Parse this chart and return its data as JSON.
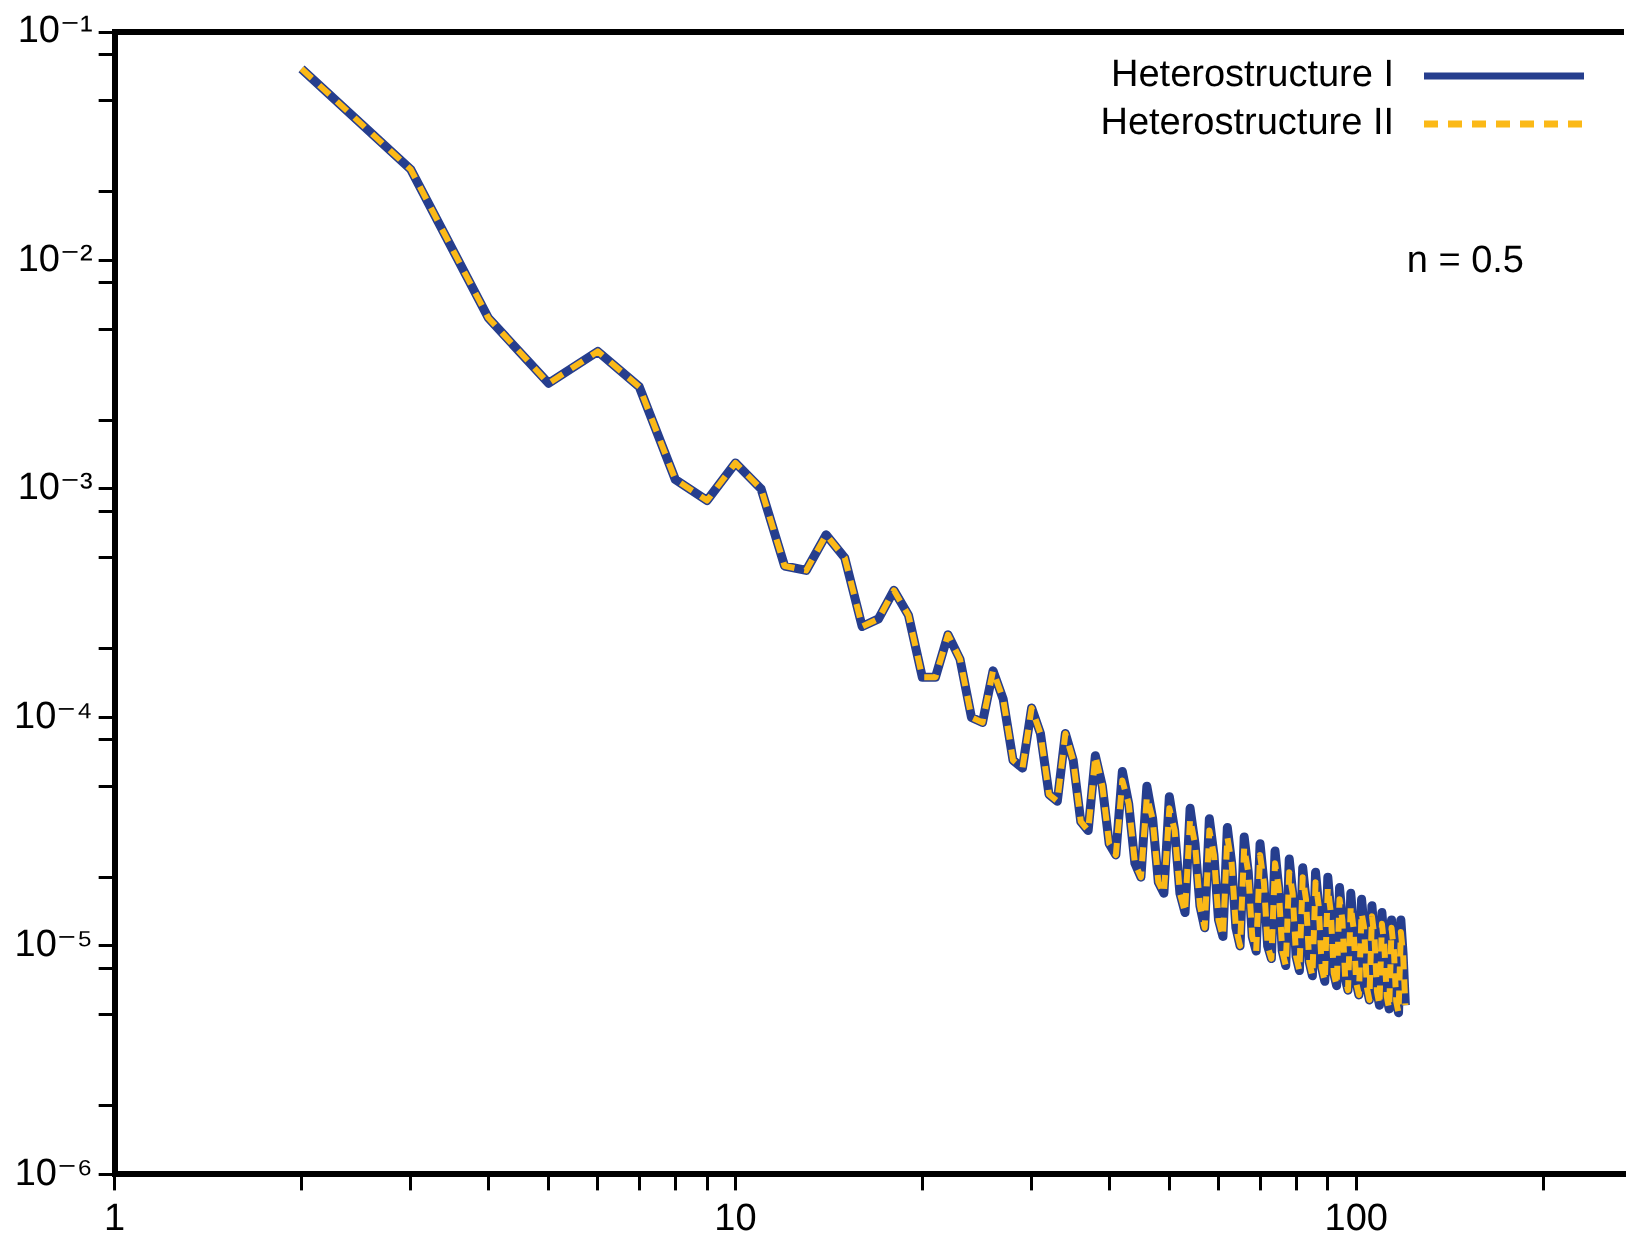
{
  "chart_data": {
    "type": "line",
    "log": "xy",
    "grid": false,
    "legend": "top right",
    "marker": "none",
    "xlim": [
      1,
      270
    ],
    "ylim": [
      1e-06,
      0.1
    ],
    "xticks": [
      1,
      {
        "value": 2,
        "label": null
      },
      {
        "value": 3,
        "label": null
      },
      {
        "value": 4,
        "label": null
      },
      {
        "value": 5,
        "label": null
      },
      {
        "value": 6,
        "label": null
      },
      {
        "value": 7,
        "label": null
      },
      {
        "value": 8,
        "label": null
      },
      {
        "value": 9,
        "label": null
      },
      10,
      {
        "value": 20,
        "label": null
      },
      {
        "value": 30,
        "label": null
      },
      {
        "value": 40,
        "label": null
      },
      {
        "value": 50,
        "label": null
      },
      {
        "value": 60,
        "label": null
      },
      {
        "value": 70,
        "label": null
      },
      {
        "value": 80,
        "label": null
      },
      {
        "value": 90,
        "label": null
      },
      100,
      {
        "value": 200,
        "label": null
      }
    ],
    "yticks": [
      {
        "value": 1e-06,
        "label": "10⁻⁶"
      },
      {
        "value": 2e-06,
        "label": null
      },
      {
        "value": 5e-06,
        "label": null
      },
      {
        "value": 8e-06,
        "label": null
      },
      {
        "value": 1e-05,
        "label": "10⁻⁵"
      },
      {
        "value": 2e-05,
        "label": null
      },
      {
        "value": 5e-05,
        "label": null
      },
      {
        "value": 8e-05,
        "label": null
      },
      {
        "value": 0.0001,
        "label": "10⁻⁴"
      },
      {
        "value": 0.0002,
        "label": null
      },
      {
        "value": 0.0005,
        "label": null
      },
      {
        "value": 0.0008,
        "label": null
      },
      {
        "value": 0.001,
        "label": "10⁻³"
      },
      {
        "value": 0.002,
        "label": null
      },
      {
        "value": 0.005,
        "label": null
      },
      {
        "value": 0.008,
        "label": null
      },
      {
        "value": 0.01,
        "label": "10⁻²"
      },
      {
        "value": 0.02,
        "label": null
      },
      {
        "value": 0.05,
        "label": null
      },
      {
        "value": 0.08,
        "label": null
      },
      {
        "value": 0.1,
        "label": "10⁻¹"
      }
    ],
    "annotations": [
      "n = 0.5"
    ],
    "x": [
      2,
      3,
      4,
      5,
      6,
      7,
      8,
      9,
      10,
      11,
      12,
      13,
      14,
      15,
      16,
      17,
      18,
      19,
      20,
      21,
      22,
      23,
      24,
      25,
      26,
      27,
      28,
      29,
      30,
      31,
      32,
      33,
      34,
      35,
      36,
      37,
      38,
      39,
      40,
      41,
      42,
      43,
      44,
      45,
      46,
      47,
      48,
      49,
      50,
      51,
      52,
      53,
      54,
      55,
      56,
      57,
      58,
      59,
      60,
      61,
      62,
      63,
      64,
      65,
      66,
      67,
      68,
      69,
      70,
      71,
      72,
      73,
      74,
      75,
      76,
      77,
      78,
      79,
      80,
      81,
      82,
      83,
      84,
      85,
      86,
      87,
      88,
      89,
      90,
      91,
      92,
      93,
      94,
      95,
      96,
      97,
      98,
      99,
      100,
      101,
      102,
      103,
      104,
      105,
      106,
      107,
      108,
      109,
      110,
      111,
      112,
      113,
      114,
      115,
      116,
      117,
      118,
      119,
      120
    ],
    "series": [
      {
        "name": "Heterostructure I",
        "color": "#263e8e",
        "line_style": "solid",
        "values": [
          0.069,
          0.025,
          0.0056,
          0.0029,
          0.004,
          0.0028,
          0.0011,
          0.00089,
          0.0013,
          0.001,
          0.00046,
          0.00044,
          0.00063,
          0.0005,
          0.00025,
          0.00027,
          0.00036,
          0.00028,
          0.00015,
          0.00015,
          0.00023,
          0.00018,
          0.0001,
          9.5e-05,
          0.00016,
          0.00012,
          6.5e-05,
          6e-05,
          0.00011,
          8.5e-05,
          4.6e-05,
          4.3e-05,
          8.5e-05,
          6.5e-05,
          3.5e-05,
          3.2e-05,
          6.8e-05,
          5e-05,
          2.8e-05,
          2.5e-05,
          5.8e-05,
          4.2e-05,
          2.3e-05,
          2e-05,
          5e-05,
          3.6e-05,
          1.9e-05,
          1.7e-05,
          4.5e-05,
          3.2e-05,
          1.7e-05,
          1.4e-05,
          4e-05,
          2.8e-05,
          1.5e-05,
          1.2e-05,
          3.6e-05,
          2.5e-05,
          1.3e-05,
          1.1e-05,
          3.3e-05,
          2.3e-05,
          1.2e-05,
          1e-05,
          3e-05,
          2.1e-05,
          1.1e-05,
          9.5e-06,
          2.8e-05,
          1.9e-05,
          1e-05,
          8.8e-06,
          2.6e-05,
          1.8e-05,
          9.5e-06,
          8.2e-06,
          2.4e-05,
          1.7e-05,
          9e-06,
          7.8e-06,
          2.2e-05,
          1.6e-05,
          8.5e-06,
          7.4e-06,
          2.1e-05,
          1.5e-05,
          8e-06,
          7e-06,
          2e-05,
          1.4e-05,
          7.6e-06,
          6.7e-06,
          1.8e-05,
          1.3e-05,
          7.2e-06,
          6.4e-06,
          1.7e-05,
          1.2e-05,
          6.9e-06,
          6.1e-06,
          1.6e-05,
          1.2e-05,
          6.6e-06,
          5.8e-06,
          1.5e-05,
          1.1e-05,
          6.3e-06,
          5.5e-06,
          1.4e-05,
          1e-05,
          6e-06,
          5.3e-06,
          1.3e-05,
          9.6e-06,
          5.7e-06,
          5.1e-06,
          1.3e-05,
          9.2e-06,
          5.5e-06
        ]
      },
      {
        "name": "Heterostructure II",
        "color": "#fbb917",
        "line_style": "dashed",
        "values": [
          0.069,
          0.025,
          0.0056,
          0.0029,
          0.004,
          0.0028,
          0.0011,
          0.00089,
          0.0013,
          0.001,
          0.00046,
          0.00044,
          0.00063,
          0.0005,
          0.00025,
          0.00027,
          0.00036,
          0.00028,
          0.00015,
          0.00015,
          0.00023,
          0.00018,
          0.0001,
          9.5e-05,
          0.00016,
          0.00012,
          6.5e-05,
          6e-05,
          0.00011,
          8.5e-05,
          4.6e-05,
          4.3e-05,
          8.5e-05,
          6.5e-05,
          3.5e-05,
          3.2e-05,
          6.8e-05,
          5e-05,
          2.8e-05,
          2.5e-05,
          5.3e-05,
          4.2e-05,
          2.3e-05,
          2e-05,
          4.5e-05,
          3.6e-05,
          1.9e-05,
          1.7e-05,
          4e-05,
          3.2e-05,
          1.7e-05,
          1.4e-05,
          3.6e-05,
          2.8e-05,
          1.5e-05,
          1.2e-05,
          3.2e-05,
          2.5e-05,
          1.3e-05,
          1.1e-05,
          3e-05,
          2.3e-05,
          1.2e-05,
          1e-05,
          2.7e-05,
          2.1e-05,
          1.1e-05,
          9.5e-06,
          2.5e-05,
          1.9e-05,
          1e-05,
          8.8e-06,
          2.3e-05,
          1.8e-05,
          9.5e-06,
          8.2e-06,
          2.1e-05,
          1.7e-05,
          9e-06,
          7.8e-06,
          2e-05,
          1.6e-05,
          8.5e-06,
          7.4e-06,
          1.9e-05,
          1.5e-05,
          8e-06,
          7e-06,
          1.8e-05,
          1.4e-05,
          7.6e-06,
          6.7e-06,
          1.6e-05,
          1.3e-05,
          7.2e-06,
          6.4e-06,
          1.5e-05,
          1.2e-05,
          6.9e-06,
          6.1e-06,
          1.4e-05,
          1.2e-05,
          6.6e-06,
          5.8e-06,
          1.35e-05,
          1.1e-05,
          6.3e-06,
          5.5e-06,
          1.25e-05,
          1e-05,
          6e-06,
          5.3e-06,
          1.2e-05,
          9.6e-06,
          5.7e-06,
          5.1e-06,
          1.15e-05,
          9.2e-06,
          5.5e-06
        ]
      }
    ]
  }
}
